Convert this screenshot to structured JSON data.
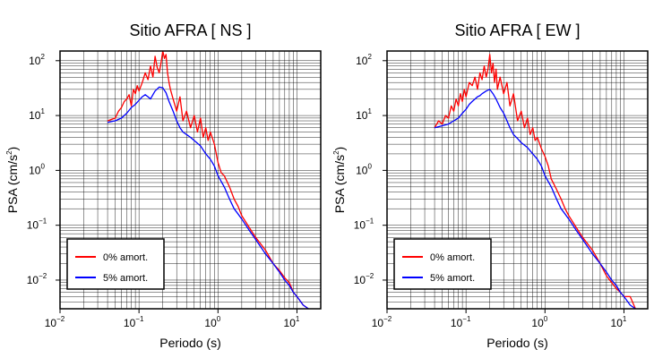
{
  "chart_data": [
    {
      "type": "line",
      "title": "Sitio AFRA [ NS ]",
      "xlabel": "Periodo (s)",
      "ylabel": "PSA (cm/s",
      "ylabel_sup": "2",
      "ylabel_close": ")",
      "xscale": "log",
      "yscale": "log",
      "xlim": [
        0.01,
        20
      ],
      "ylim": [
        0.003,
        150
      ],
      "grid": true,
      "legend_placement": "lower-left",
      "xticks": [
        {
          "base": "10",
          "exp": "−2"
        },
        {
          "base": "10",
          "exp": "−1"
        },
        {
          "base": "10",
          "exp": "0"
        },
        {
          "base": "10",
          "exp": "1"
        }
      ],
      "yticks": [
        {
          "base": "10",
          "exp": "−2"
        },
        {
          "base": "10",
          "exp": "−1"
        },
        {
          "base": "10",
          "exp": "0"
        },
        {
          "base": "10",
          "exp": "1"
        },
        {
          "base": "10",
          "exp": "2"
        }
      ],
      "series": [
        {
          "name": "0% amort.",
          "color": "#ff0000",
          "x": [
            0.04,
            0.045,
            0.05,
            0.055,
            0.06,
            0.065,
            0.07,
            0.075,
            0.08,
            0.085,
            0.09,
            0.095,
            0.1,
            0.11,
            0.12,
            0.13,
            0.14,
            0.15,
            0.16,
            0.17,
            0.18,
            0.19,
            0.2,
            0.21,
            0.22,
            0.23,
            0.24,
            0.25,
            0.27,
            0.3,
            0.33,
            0.36,
            0.4,
            0.45,
            0.5,
            0.55,
            0.6,
            0.65,
            0.7,
            0.75,
            0.8,
            0.9,
            1.0,
            1.1,
            1.2,
            1.4,
            1.6,
            1.8,
            2.0,
            2.5,
            3,
            4,
            5,
            6,
            7,
            8,
            9,
            10,
            12,
            14
          ],
          "y": [
            8,
            8.5,
            9,
            12,
            14,
            18,
            20,
            24,
            15,
            30,
            25,
            35,
            28,
            40,
            60,
            45,
            80,
            50,
            120,
            75,
            60,
            90,
            150,
            110,
            130,
            60,
            40,
            30,
            20,
            12,
            22,
            8,
            12,
            6,
            10,
            5,
            9,
            4,
            6,
            3.5,
            5,
            3,
            1.4,
            0.9,
            0.8,
            0.5,
            0.3,
            0.22,
            0.15,
            0.09,
            0.06,
            0.035,
            0.02,
            0.015,
            0.011,
            0.009,
            0.006,
            0.005,
            0.0035,
            0.003
          ]
        },
        {
          "name": "5% amort.",
          "color": "#0000ff",
          "x": [
            0.04,
            0.05,
            0.06,
            0.07,
            0.08,
            0.09,
            0.1,
            0.11,
            0.12,
            0.13,
            0.14,
            0.15,
            0.16,
            0.18,
            0.2,
            0.22,
            0.24,
            0.27,
            0.3,
            0.33,
            0.36,
            0.4,
            0.45,
            0.5,
            0.6,
            0.7,
            0.8,
            0.9,
            1.0,
            1.2,
            1.4,
            1.6,
            1.8,
            2.0,
            2.5,
            3,
            4,
            5,
            6,
            7,
            8,
            9,
            10,
            12,
            14
          ],
          "y": [
            7.5,
            8,
            9,
            11,
            14,
            16,
            19,
            22,
            24,
            22,
            20,
            24,
            28,
            33,
            32,
            26,
            18,
            12,
            8,
            6,
            5,
            4.5,
            4,
            3.5,
            2.8,
            2.0,
            1.6,
            1.2,
            0.8,
            0.5,
            0.3,
            0.2,
            0.16,
            0.13,
            0.08,
            0.055,
            0.03,
            0.02,
            0.014,
            0.01,
            0.008,
            0.006,
            0.005,
            0.0035,
            0.003
          ]
        }
      ]
    },
    {
      "type": "line",
      "title": "Sitio AFRA [ EW ]",
      "xlabel": "Periodo (s)",
      "ylabel": "PSA (cm/s",
      "ylabel_sup": "2",
      "ylabel_close": ")",
      "xscale": "log",
      "yscale": "log",
      "xlim": [
        0.01,
        20
      ],
      "ylim": [
        0.003,
        150
      ],
      "grid": true,
      "legend_placement": "lower-left",
      "xticks": [
        {
          "base": "10",
          "exp": "−2"
        },
        {
          "base": "10",
          "exp": "−1"
        },
        {
          "base": "10",
          "exp": "0"
        },
        {
          "base": "10",
          "exp": "1"
        }
      ],
      "yticks": [
        {
          "base": "10",
          "exp": "−2"
        },
        {
          "base": "10",
          "exp": "−1"
        },
        {
          "base": "10",
          "exp": "0"
        },
        {
          "base": "10",
          "exp": "1"
        },
        {
          "base": "10",
          "exp": "2"
        }
      ],
      "series": [
        {
          "name": "0% amort.",
          "color": "#ff0000",
          "x": [
            0.04,
            0.045,
            0.05,
            0.055,
            0.06,
            0.065,
            0.07,
            0.075,
            0.08,
            0.085,
            0.09,
            0.095,
            0.1,
            0.11,
            0.12,
            0.13,
            0.14,
            0.15,
            0.16,
            0.17,
            0.18,
            0.19,
            0.2,
            0.21,
            0.22,
            0.23,
            0.24,
            0.25,
            0.27,
            0.3,
            0.33,
            0.36,
            0.4,
            0.45,
            0.5,
            0.55,
            0.6,
            0.65,
            0.7,
            0.75,
            0.8,
            0.9,
            1.0,
            1.1,
            1.2,
            1.4,
            1.6,
            1.8,
            2.0,
            2.5,
            3,
            4,
            5,
            6,
            7,
            8,
            9,
            10,
            12,
            14
          ],
          "y": [
            6,
            8,
            7,
            10,
            9,
            15,
            12,
            20,
            15,
            25,
            18,
            30,
            22,
            40,
            35,
            50,
            30,
            60,
            45,
            80,
            50,
            70,
            130,
            60,
            90,
            40,
            70,
            30,
            50,
            25,
            40,
            15,
            25,
            8,
            12,
            6,
            9,
            4.5,
            6,
            3.5,
            4,
            2.5,
            1.8,
            1.2,
            0.7,
            0.45,
            0.3,
            0.2,
            0.15,
            0.09,
            0.06,
            0.035,
            0.02,
            0.012,
            0.009,
            0.007,
            0.006,
            0.005,
            0.005,
            0.003
          ]
        },
        {
          "name": "5% amort.",
          "color": "#0000ff",
          "x": [
            0.04,
            0.05,
            0.06,
            0.07,
            0.08,
            0.09,
            0.1,
            0.11,
            0.12,
            0.13,
            0.14,
            0.15,
            0.16,
            0.18,
            0.2,
            0.22,
            0.24,
            0.27,
            0.3,
            0.33,
            0.36,
            0.4,
            0.45,
            0.5,
            0.6,
            0.7,
            0.8,
            0.9,
            1.0,
            1.2,
            1.4,
            1.6,
            1.8,
            2.0,
            2.5,
            3,
            4,
            5,
            6,
            7,
            8,
            9,
            10,
            12,
            14
          ],
          "y": [
            6,
            6.5,
            7,
            8,
            9,
            11,
            13,
            16,
            18,
            20,
            22,
            23,
            25,
            28,
            30,
            25,
            20,
            14,
            11,
            8,
            6,
            4.5,
            3.8,
            3.2,
            2.6,
            2.0,
            1.6,
            1.2,
            0.8,
            0.5,
            0.3,
            0.2,
            0.16,
            0.13,
            0.08,
            0.055,
            0.03,
            0.02,
            0.014,
            0.01,
            0.008,
            0.006,
            0.005,
            0.0035,
            0.003
          ]
        }
      ]
    }
  ]
}
